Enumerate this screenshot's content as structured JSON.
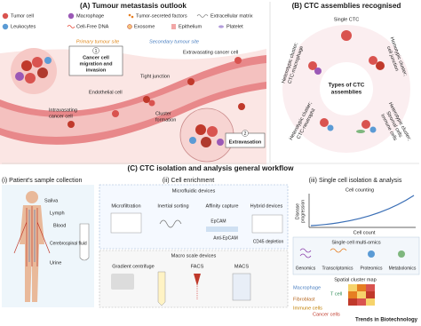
{
  "panel_a": {
    "title": "(A) Tumour metastasis outlook",
    "legend": [
      "Tumor cell",
      "Macrophage",
      "Tumor-secreted factors",
      "Extracellular matrix",
      "Leukocytes",
      "Cell-Free DNA",
      "Exosome",
      "Epithelium",
      "Platelet"
    ],
    "primary_site": "Primary tumour site",
    "secondary_site": "Secondary tumour site",
    "step1_number": "1",
    "step1_label": [
      "Cancer cell",
      "migration and",
      "invasion"
    ],
    "tight_junction": "Tight junction",
    "extravasating": "Extravasating cancer cell",
    "endothelial": "Endothelial cell",
    "intravasating": [
      "Intravasating",
      "cancer cell"
    ],
    "cluster_formation": [
      "Cluster",
      "formation"
    ],
    "step2_number": "2",
    "step2_label": "Extravasation"
  },
  "panel_b": {
    "title": "(B) CTC assemblies recognised",
    "single": "Single CTC",
    "center_label": [
      "Types of CTC",
      "assemblies"
    ],
    "assemblies": [
      [
        "Heterotypic cluster;",
        "CTC-macrophage"
      ],
      [
        "Homotypic cluster;",
        "cell junction"
      ],
      [
        "Heterotypic cluster;",
        "CTC-neutrophil"
      ],
      [
        "Heterotypic cluster;",
        "Stromal cells",
        "Immune cells"
      ]
    ]
  },
  "panel_c": {
    "title": "(C) CTC isolation and analysis general workflow",
    "collection": {
      "title": "(i) Patient's sample collection",
      "samples": [
        "Saliva",
        "Lymph",
        "Blood",
        "Cerebrospinal fluid",
        "Urine"
      ]
    },
    "enrichment": {
      "title": "(ii) Cell enrichment",
      "microfluidic": "Microfluidic devices",
      "micro_methods": [
        "Microfiltration",
        "Inertial sorting",
        "Affinity capture",
        "Hybrid devices"
      ],
      "epcam": "EpCAM",
      "anti_epcam": "Anti-EpCAM",
      "cd45": "CD45 depletion",
      "macro": "Macro scale devices",
      "macro_methods": [
        "Gradient centrifuge",
        "FACS",
        "MACS"
      ]
    },
    "analysis": {
      "title": "(iii) Single cell isolation & analysis",
      "cell_counting": "Cell counting",
      "y_axis": [
        "Disease",
        "progression"
      ],
      "x_axis": "Cell count",
      "multiomics": "Single cell multi-omics",
      "omics": [
        "Genomics",
        "Transcriptomics",
        "Proteomics",
        "Metabolomics"
      ],
      "spatial": "Spatial cluster map",
      "cell_types": [
        "Macrophage",
        "T cell",
        "Fibroblast",
        "Immune cells",
        "Cancer cells"
      ]
    }
  },
  "footer": "Trends in Biotechnology"
}
